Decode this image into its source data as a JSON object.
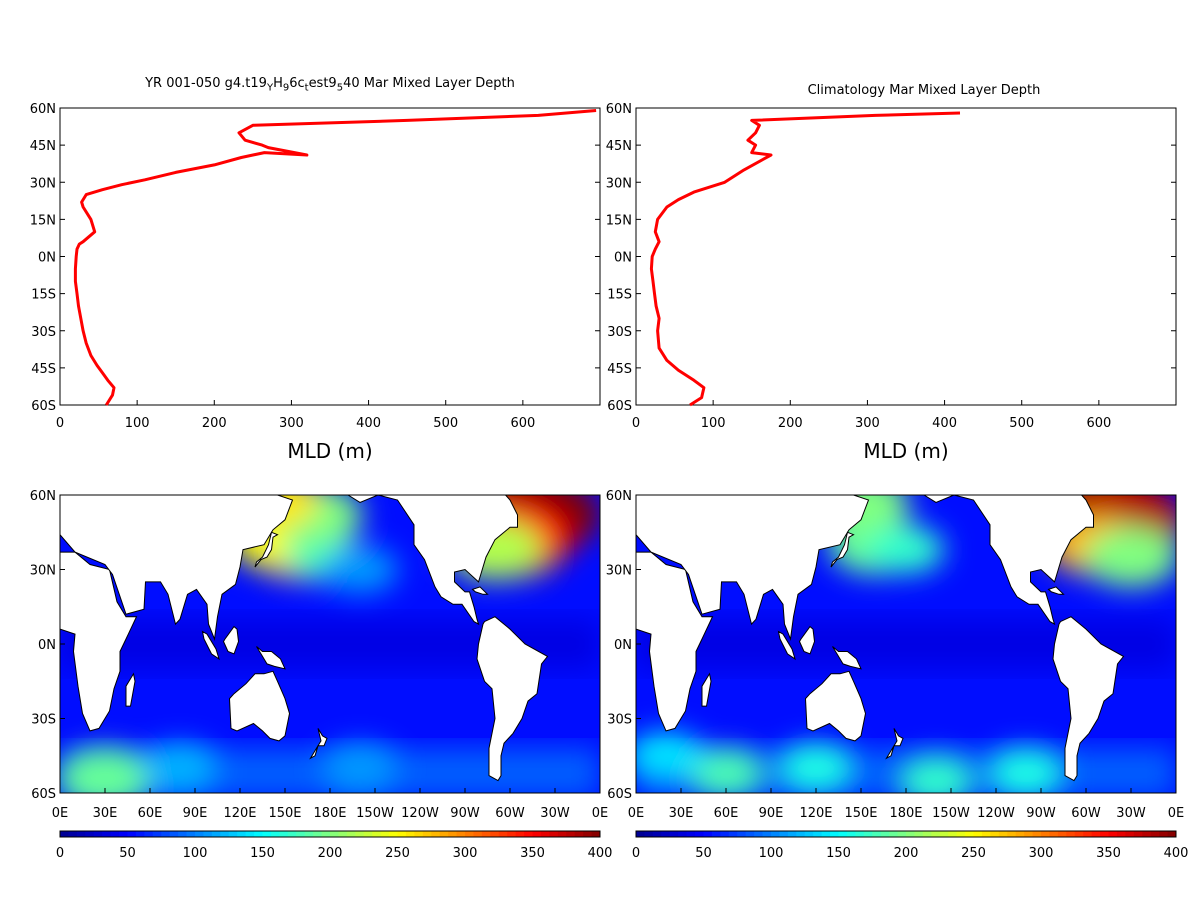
{
  "panels": {
    "left_title": {
      "pre": "YR 001-050 g4.t19",
      "s1": "Y",
      "m1": "H",
      "s2": "9",
      "m2": "6c",
      "s3": "t",
      "m3": "est9",
      "s4": "5",
      "end": "40 Mar Mixed Layer Depth"
    },
    "right_title": "Climatology Mar Mixed Layer Depth"
  },
  "colors": {
    "profile_line": "#ff0000",
    "colormap": [
      "#00008f",
      "#0000ff",
      "#0080ff",
      "#00ffff",
      "#80ff80",
      "#ffff00",
      "#ff8000",
      "#ff0000",
      "#800000"
    ],
    "land": "#ffffff",
    "coast": "#000000"
  },
  "chart_data": [
    {
      "type": "line",
      "title": "YR 001-050 g4.t19YH96ctest9540 Mar Mixed Layer Depth",
      "xlabel": "MLD (m)",
      "ylabel": "",
      "xlim": [
        0,
        700
      ],
      "ylim": [
        -60,
        60
      ],
      "x_ticks": [
        0,
        100,
        200,
        300,
        400,
        500,
        600
      ],
      "y_ticks": [
        "60N",
        "45N",
        "30N",
        "15N",
        "0N",
        "15S",
        "30S",
        "45S",
        "60S"
      ],
      "series": [
        {
          "x": [
            60,
            68,
            70,
            62,
            55,
            48,
            40,
            34,
            30,
            27,
            24,
            22,
            20,
            20,
            21,
            22,
            25,
            30,
            45,
            40,
            30,
            28,
            34,
            55,
            80,
            110,
            150,
            200,
            235,
            265,
            320,
            270,
            262,
            240,
            232,
            250,
            450,
            620,
            695
          ],
          "y": [
            -60,
            -56,
            -53,
            -50,
            -47,
            -44,
            -40,
            -35,
            -30,
            -25,
            -20,
            -15,
            -10,
            -5,
            0,
            3,
            5,
            6,
            10,
            15,
            20,
            22,
            25,
            27,
            29,
            31,
            34,
            37,
            40,
            42,
            41,
            44,
            45,
            47,
            50,
            53,
            55,
            57,
            59
          ]
        }
      ]
    },
    {
      "type": "line",
      "title": "Climatology Mar Mixed Layer Depth",
      "xlabel": "MLD (m)",
      "ylabel": "",
      "xlim": [
        0,
        700
      ],
      "ylim": [
        -60,
        60
      ],
      "x_ticks": [
        0,
        100,
        200,
        300,
        400,
        500,
        600
      ],
      "y_ticks": [
        "60N",
        "45N",
        "30N",
        "15N",
        "0N",
        "15S",
        "30S",
        "45S",
        "60S"
      ],
      "series": [
        {
          "x": [
            70,
            85,
            88,
            75,
            55,
            40,
            30,
            28,
            30,
            26,
            24,
            22,
            20,
            21,
            25,
            30,
            25,
            28,
            40,
            55,
            75,
            95,
            115,
            140,
            175,
            150,
            155,
            145,
            155,
            160,
            150,
            310,
            420
          ],
          "y": [
            -60,
            -57,
            -53,
            -50,
            -46,
            -42,
            -37,
            -30,
            -25,
            -20,
            -15,
            -10,
            -5,
            0,
            3,
            6,
            10,
            15,
            20,
            23,
            26,
            28,
            30,
            35,
            41,
            42,
            45,
            47,
            50,
            53,
            55,
            57,
            58
          ]
        }
      ]
    },
    {
      "type": "heatmap",
      "title": "",
      "x_ticks": [
        "0E",
        "30E",
        "60E",
        "90E",
        "120E",
        "150E",
        "180E",
        "150W",
        "120W",
        "90W",
        "60W",
        "30W",
        "0E"
      ],
      "y_ticks": [
        "60N",
        "30N",
        "0N",
        "30S",
        "60S"
      ],
      "lat_range": [
        -60,
        60
      ],
      "lon_range": [
        0,
        360
      ],
      "colorbar": {
        "ticks": [
          0,
          50,
          100,
          150,
          200,
          250,
          300,
          350,
          400
        ]
      },
      "blobs": [
        {
          "lon": 160,
          "lat": 38,
          "value": 300
        },
        {
          "lon": 145,
          "lat": 42,
          "value": 250
        },
        {
          "lon": 175,
          "lat": 35,
          "value": 180
        },
        {
          "lon": 170,
          "lat": 52,
          "value": 200
        },
        {
          "lon": 140,
          "lat": 58,
          "value": 260
        },
        {
          "lon": 305,
          "lat": 58,
          "value": 400
        },
        {
          "lon": 320,
          "lat": 52,
          "value": 400
        },
        {
          "lon": 300,
          "lat": 42,
          "value": 350
        },
        {
          "lon": 290,
          "lat": 38,
          "value": 220
        },
        {
          "lon": 30,
          "lat": -54,
          "value": 190
        },
        {
          "lon": 80,
          "lat": -50,
          "value": 120
        },
        {
          "lon": 200,
          "lat": -50,
          "value": 110
        },
        {
          "lon": 200,
          "lat": 30,
          "value": 110
        }
      ]
    },
    {
      "type": "heatmap",
      "title": "",
      "x_ticks": [
        "0E",
        "30E",
        "60E",
        "90E",
        "120E",
        "150E",
        "180E",
        "150W",
        "120W",
        "90W",
        "60W",
        "30W",
        "0E"
      ],
      "y_ticks": [
        "60N",
        "30N",
        "0N",
        "30S",
        "60S"
      ],
      "lat_range": [
        -60,
        60
      ],
      "lon_range": [
        0,
        360
      ],
      "colorbar": {
        "ticks": [
          0,
          50,
          100,
          150,
          200,
          250,
          300,
          350,
          400
        ]
      },
      "blobs": [
        {
          "lon": 160,
          "lat": 40,
          "value": 190
        },
        {
          "lon": 180,
          "lat": 38,
          "value": 170
        },
        {
          "lon": 150,
          "lat": 57,
          "value": 200
        },
        {
          "lon": 310,
          "lat": 58,
          "value": 400
        },
        {
          "lon": 325,
          "lat": 50,
          "value": 380
        },
        {
          "lon": 305,
          "lat": 40,
          "value": 280
        },
        {
          "lon": 330,
          "lat": 35,
          "value": 200
        },
        {
          "lon": 60,
          "lat": -52,
          "value": 180
        },
        {
          "lon": 120,
          "lat": -50,
          "value": 160
        },
        {
          "lon": 200,
          "lat": -55,
          "value": 170
        },
        {
          "lon": 260,
          "lat": -52,
          "value": 160
        },
        {
          "lon": 20,
          "lat": -45,
          "value": 140
        }
      ]
    }
  ]
}
